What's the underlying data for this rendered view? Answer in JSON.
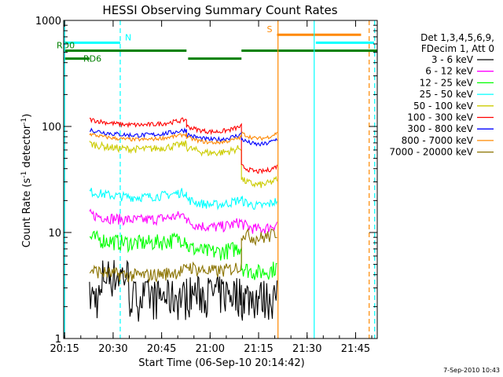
{
  "chart_data": {
    "type": "line",
    "title": "HESSI Observing Summary Count Rates",
    "xlabel": "Start Time (06-Sep-10 20:14:42)",
    "ylabel": "Count Rate (s⁻¹ detector⁻¹)",
    "ylabel_parts": {
      "base": "Count Rate (s",
      "exp1": "-1",
      "mid": " detector",
      "exp2": "-1",
      "end": ")"
    },
    "yscale": "log",
    "ylim": [
      1,
      1000
    ],
    "xlim_minutes": [
      0,
      97
    ],
    "x_ticks": [
      {
        "t": 0.3,
        "label": "20:15"
      },
      {
        "t": 15.3,
        "label": "20:30"
      },
      {
        "t": 30.3,
        "label": "20:45"
      },
      {
        "t": 45.3,
        "label": "21:00"
      },
      {
        "t": 60.3,
        "label": "21:15"
      },
      {
        "t": 75.3,
        "label": "21:30"
      },
      {
        "t": 90.3,
        "label": "21:45"
      }
    ],
    "y_ticks": [
      {
        "v": 1,
        "label": "1"
      },
      {
        "v": 10,
        "label": "10"
      },
      {
        "v": 100,
        "label": "100"
      },
      {
        "v": 1000,
        "label": "1000"
      }
    ],
    "legend_header": [
      "Det 1,3,4,5,6,9,",
      "FDecim 1, Att 0"
    ],
    "footer_date": "7-Sep-2010 10:43",
    "segments": [
      [
        8,
        38
      ],
      [
        55,
        66
      ]
    ],
    "series": [
      {
        "name": "3 - 6 keV",
        "color": "#000000",
        "values": [
          2.4,
          2.6
        ],
        "noise": 0.5
      },
      {
        "name": "6 - 12 keV",
        "color": "#ff00ff",
        "values": [
          14,
          12,
          11.5
        ],
        "noise": 0.12
      },
      {
        "name": "12 - 25 keV",
        "color": "#00ff00",
        "values": [
          8.5,
          7,
          4.5
        ],
        "noise": 0.18
      },
      {
        "name": "25 - 50 keV",
        "color": "#00ffff",
        "values": [
          23,
          19.5,
          19
        ],
        "noise": 0.1
      },
      {
        "name": "50 - 100 keV",
        "color": "#cccc00",
        "values": [
          65,
          60,
          30
        ],
        "noise": 0.08
      },
      {
        "name": "100 - 300 keV",
        "color": "#ff0000",
        "values": [
          110,
          95,
          40
        ],
        "noise": 0.05
      },
      {
        "name": "300 - 800 keV",
        "color": "#0000ff",
        "values": [
          88,
          80,
          72
        ],
        "noise": 0.05
      },
      {
        "name": "800 - 7000 keV",
        "color": "#ff8800",
        "values": [
          80,
          75,
          82
        ],
        "noise": 0.04
      },
      {
        "name": "7000 - 20000 keV",
        "color": "#8b7300",
        "values": [
          4.2,
          4.6,
          9.5
        ],
        "noise": 0.15
      }
    ],
    "flags": [
      {
        "label": "N",
        "color": "#00ffff",
        "y_frac": 0.07,
        "ranges": [
          [
            0,
            17.5
          ],
          [
            78,
            96
          ]
        ]
      },
      {
        "label": "S",
        "color": "#ff8800",
        "y_frac": 0.045,
        "ranges": [
          [
            66,
            92
          ]
        ]
      },
      {
        "label": "RD0",
        "color": "#008000",
        "y_frac": 0.095,
        "ranges": [
          [
            0,
            38
          ],
          [
            55,
            97
          ]
        ]
      },
      {
        "label": "RD6",
        "color": "#008000",
        "y_frac": 0.12,
        "ranges": [
          [
            0,
            8
          ],
          [
            38.5,
            55
          ]
        ]
      }
    ],
    "vlines": [
      {
        "t": 0.3,
        "color": "#00ffff",
        "style": "solid"
      },
      {
        "t": 17.5,
        "color": "#00ffff",
        "style": "dashed"
      },
      {
        "t": 66.3,
        "color": "#ff8800",
        "style": "solid"
      },
      {
        "t": 77.5,
        "color": "#00ffff",
        "style": "solid"
      },
      {
        "t": 94.5,
        "color": "#ff8800",
        "style": "dashed"
      },
      {
        "t": 96.2,
        "color": "#00ffff",
        "style": "dashed"
      }
    ]
  }
}
